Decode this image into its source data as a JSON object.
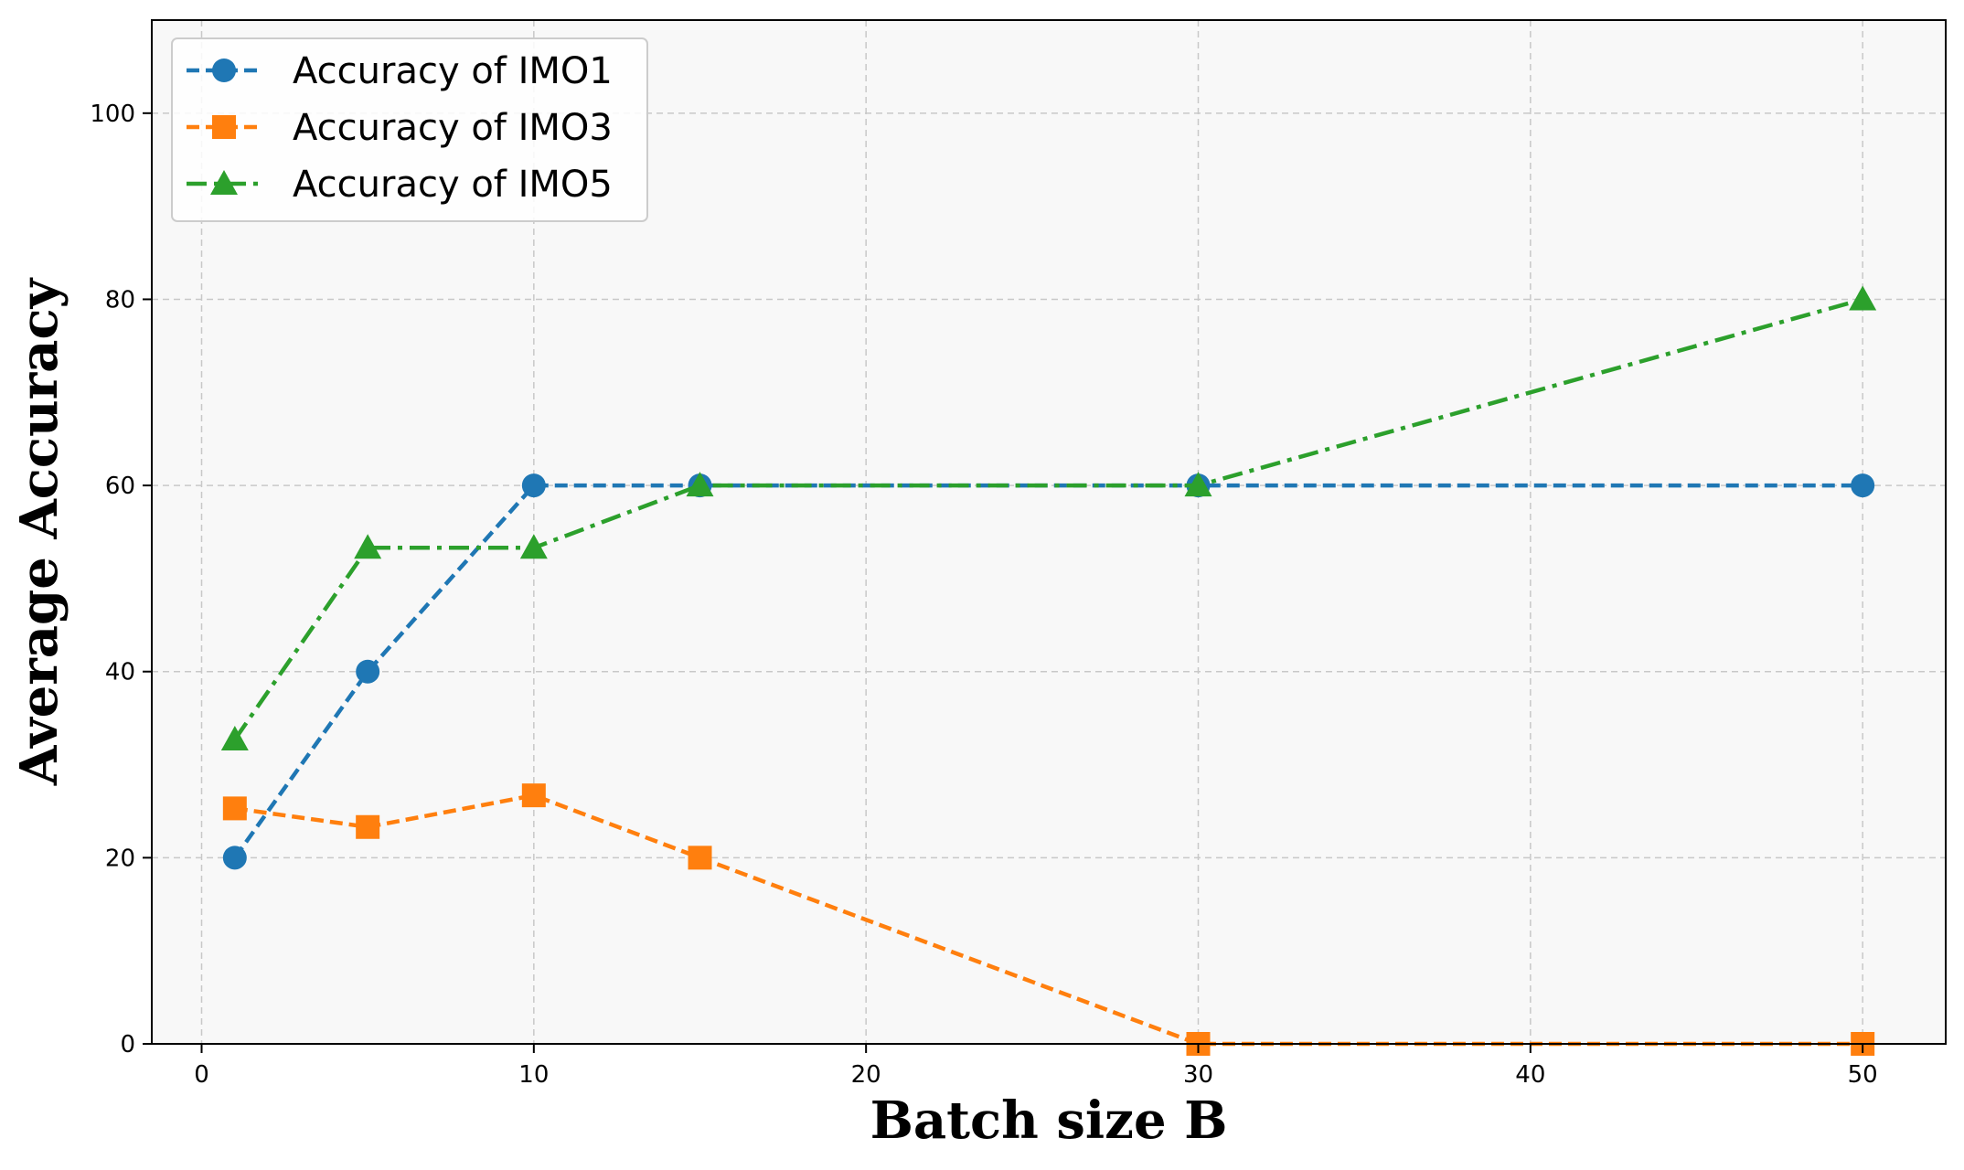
{
  "chart_data": {
    "type": "line",
    "title": "",
    "xlabel": "Batch size B",
    "ylabel": "Average Accuracy",
    "xlim": [
      -1.5,
      52.5
    ],
    "ylim": [
      0,
      110
    ],
    "xticks": [
      0,
      10,
      20,
      30,
      40,
      50
    ],
    "yticks": [
      0,
      20,
      40,
      60,
      80,
      100
    ],
    "grid": true,
    "legend_position": "top-left",
    "x": [
      1,
      5,
      10,
      15,
      30,
      50
    ],
    "series": [
      {
        "name": "Accuracy of IMO1",
        "values": [
          20,
          40,
          60,
          60,
          60,
          60
        ],
        "color": "#1f77b4",
        "marker": "circle",
        "dash": "dashed"
      },
      {
        "name": "Accuracy of IMO3",
        "values": [
          25.3,
          23.3,
          26.7,
          20,
          0,
          0
        ],
        "color": "#ff7f0e",
        "marker": "square",
        "dash": "dashed"
      },
      {
        "name": "Accuracy of IMO5",
        "values": [
          32.7,
          53.3,
          53.3,
          60,
          60,
          80
        ],
        "color": "#2ca02c",
        "marker": "triangle",
        "dash": "dashdot"
      }
    ]
  }
}
